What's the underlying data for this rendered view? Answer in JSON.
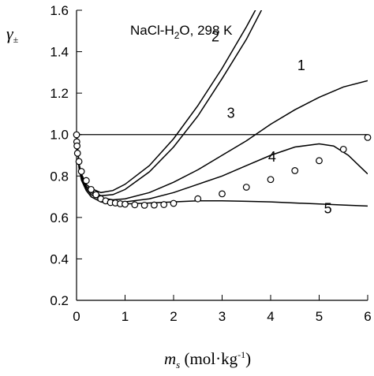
{
  "chart_data": {
    "type": "line",
    "title": "",
    "annotation_main": "NaCl-H",
    "annotation_sub": "2",
    "annotation_tail": "O, 298 K",
    "ylabel": "γ",
    "ylabel_sub": "±",
    "xlabel_main": "m",
    "xlabel_sub": "s",
    "xlabel_unit": "(mol·kg",
    "xlabel_sup": "-1",
    "xlabel_close": ")",
    "xlim": [
      0,
      6
    ],
    "ylim": [
      0.2,
      1.6
    ],
    "xticks": [
      "0",
      "1",
      "2",
      "3",
      "4",
      "5",
      "6"
    ],
    "yticks": [
      "0.2",
      "0.4",
      "0.6",
      "0.8",
      "1.0",
      "1.2",
      "1.4",
      "1.6"
    ],
    "reference_y": 1.0,
    "series": [
      {
        "name": "1",
        "x": [
          0,
          0.05,
          0.1,
          0.2,
          0.3,
          0.5,
          0.75,
          1,
          1.5,
          2,
          2.5,
          3,
          3.5,
          4,
          4.5,
          5,
          5.5,
          6
        ],
        "y": [
          1.0,
          0.85,
          0.8,
          0.75,
          0.72,
          0.695,
          0.685,
          0.69,
          0.72,
          0.77,
          0.83,
          0.9,
          0.97,
          1.05,
          1.12,
          1.18,
          1.23,
          1.26
        ]
      },
      {
        "name": "2",
        "x": [
          0,
          0.05,
          0.1,
          0.2,
          0.3,
          0.5,
          0.75,
          1,
          1.5,
          2,
          2.5,
          3,
          3.5,
          3.8
        ],
        "y": [
          1.0,
          0.86,
          0.81,
          0.76,
          0.74,
          0.72,
          0.73,
          0.76,
          0.85,
          0.98,
          1.14,
          1.32,
          1.52,
          1.65
        ]
      },
      {
        "name": "3",
        "x": [
          0,
          0.05,
          0.1,
          0.2,
          0.3,
          0.5,
          0.75,
          1,
          1.5,
          2,
          2.5,
          3,
          3.5,
          3.92
        ],
        "y": [
          1.0,
          0.86,
          0.8,
          0.75,
          0.73,
          0.705,
          0.71,
          0.735,
          0.82,
          0.94,
          1.09,
          1.27,
          1.46,
          1.65
        ]
      },
      {
        "name": "4",
        "x": [
          0,
          0.05,
          0.1,
          0.2,
          0.3,
          0.5,
          0.75,
          1,
          1.5,
          2,
          2.5,
          3,
          3.5,
          4,
          4.5,
          5,
          5.3,
          5.6,
          6
        ],
        "y": [
          1.0,
          0.85,
          0.79,
          0.74,
          0.71,
          0.685,
          0.675,
          0.675,
          0.69,
          0.72,
          0.76,
          0.8,
          0.85,
          0.9,
          0.94,
          0.955,
          0.945,
          0.9,
          0.81
        ]
      },
      {
        "name": "5",
        "x": [
          0,
          0.05,
          0.1,
          0.2,
          0.3,
          0.5,
          0.75,
          1,
          1.5,
          2,
          2.5,
          3,
          3.5,
          4,
          4.5,
          5,
          5.5,
          6
        ],
        "y": [
          1.0,
          0.84,
          0.78,
          0.73,
          0.7,
          0.675,
          0.665,
          0.665,
          0.67,
          0.675,
          0.68,
          0.68,
          0.678,
          0.675,
          0.67,
          0.665,
          0.66,
          0.655
        ]
      }
    ],
    "curve_label_positions": [
      {
        "name": "1",
        "x": 4.55,
        "y": 1.31
      },
      {
        "name": "2",
        "x": 2.78,
        "y": 1.45
      },
      {
        "name": "3",
        "x": 3.1,
        "y": 1.08
      },
      {
        "name": "4",
        "x": 3.95,
        "y": 0.87
      },
      {
        "name": "5",
        "x": 5.1,
        "y": 0.62
      }
    ],
    "experimental_points": {
      "x": [
        0.001,
        0.005,
        0.01,
        0.02,
        0.05,
        0.1,
        0.2,
        0.3,
        0.4,
        0.5,
        0.6,
        0.7,
        0.8,
        0.9,
        1.0,
        1.2,
        1.4,
        1.6,
        1.8,
        2.0,
        2.5,
        3.0,
        3.5,
        4.0,
        4.5,
        5.0,
        5.5,
        6.0
      ],
      "y": [
        0.999,
        0.965,
        0.945,
        0.91,
        0.87,
        0.822,
        0.778,
        0.735,
        0.71,
        0.69,
        0.68,
        0.672,
        0.67,
        0.666,
        0.664,
        0.661,
        0.659,
        0.66,
        0.662,
        0.668,
        0.69,
        0.714,
        0.746,
        0.783,
        0.826,
        0.874,
        0.929,
        0.986
      ]
    }
  }
}
